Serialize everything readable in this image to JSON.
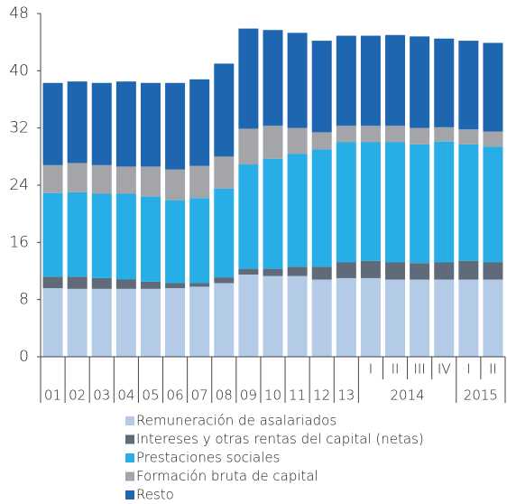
{
  "chart_data": {
    "type": "stacked_bar",
    "categories": [
      "01",
      "02",
      "03",
      "04",
      "05",
      "06",
      "07",
      "08",
      "09",
      "10",
      "11",
      "12",
      "13",
      "I",
      "II",
      "III",
      "IV",
      "I",
      "II"
    ],
    "group_labels": [
      "2014",
      "2015"
    ],
    "ylim": [
      0,
      48
    ],
    "yticks": [
      0,
      8,
      16,
      24,
      32,
      40,
      48
    ],
    "grid": false,
    "series": [
      {
        "name": "Remuneración de asalariados",
        "color": "#b4cbe8",
        "values": [
          9.6,
          9.5,
          9.5,
          9.5,
          9.5,
          9.6,
          9.8,
          10.3,
          11.5,
          11.3,
          11.3,
          10.8,
          11.0,
          11.0,
          10.8,
          10.8,
          10.8,
          10.8,
          10.8
        ]
      },
      {
        "name": "Intereses y otras rentas del capital (netas)",
        "color": "#606a78",
        "values": [
          1.6,
          1.7,
          1.5,
          1.3,
          1.0,
          0.7,
          0.5,
          0.8,
          0.8,
          1.0,
          1.3,
          1.8,
          2.2,
          2.4,
          2.4,
          2.3,
          2.4,
          2.6,
          2.4
        ]
      },
      {
        "name": "Prestaciones sociales",
        "color": "#27aee6",
        "values": [
          11.7,
          11.8,
          11.8,
          12.0,
          11.9,
          11.6,
          11.9,
          12.4,
          14.6,
          15.4,
          15.8,
          16.4,
          16.8,
          16.6,
          16.8,
          16.6,
          16.9,
          16.3,
          16.2
        ]
      },
      {
        "name": "Formación bruta de capital",
        "color": "#a3a5a8",
        "values": [
          3.9,
          4.1,
          4.0,
          3.8,
          4.2,
          4.3,
          4.5,
          4.5,
          5.0,
          4.6,
          3.6,
          2.4,
          2.3,
          2.3,
          2.3,
          2.3,
          2.0,
          2.1,
          2.1
        ]
      },
      {
        "name": "Resto",
        "color": "#1f66b0",
        "values": [
          11.5,
          11.4,
          11.5,
          11.9,
          11.7,
          12.1,
          12.1,
          13.0,
          14.0,
          13.4,
          13.3,
          12.8,
          12.6,
          12.6,
          12.7,
          12.8,
          12.4,
          12.4,
          12.4
        ]
      }
    ],
    "legend": "bottom"
  }
}
